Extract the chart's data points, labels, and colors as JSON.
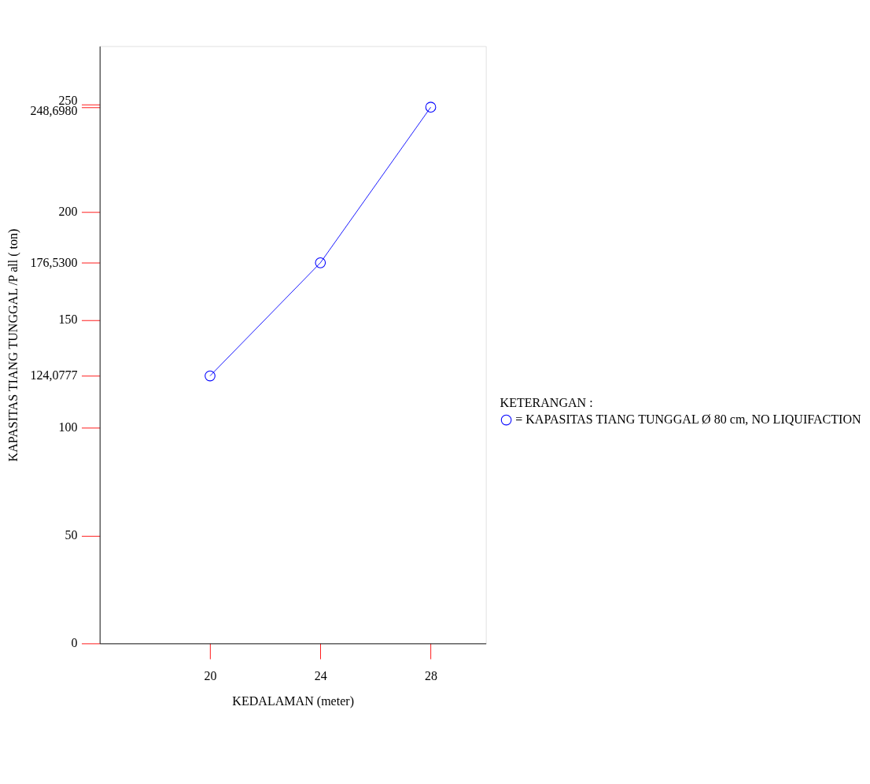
{
  "chart_data": {
    "type": "line",
    "xlabel": "KEDALAMAN (meter)",
    "ylabel": "KAPASITAS TIANG TUNGGAL /P all ( ton)",
    "x": [
      20,
      24,
      28
    ],
    "series": [
      {
        "name": "= KAPASITAS TIANG TUNGGAL Ø 80 cm, NO LIQUIFACTION",
        "color": "#0000ff",
        "values": [
          124.0777,
          176.53,
          248.698
        ]
      }
    ],
    "legend_title": "KETERANGAN :",
    "xlim": [
      16,
      30
    ],
    "xticks": [
      20,
      24,
      28
    ],
    "ylim": [
      0,
      277
    ],
    "yticks": [
      0,
      50,
      {
        "value": 124.0777,
        "label": "124,0777"
      },
      100,
      150,
      {
        "value": 176.53,
        "label": "176,5300"
      },
      200,
      250,
      {
        "value": 248.698,
        "label": "248,6980"
      }
    ],
    "grid": false,
    "legend": "right",
    "marker": "circle",
    "line_style": "solid"
  }
}
